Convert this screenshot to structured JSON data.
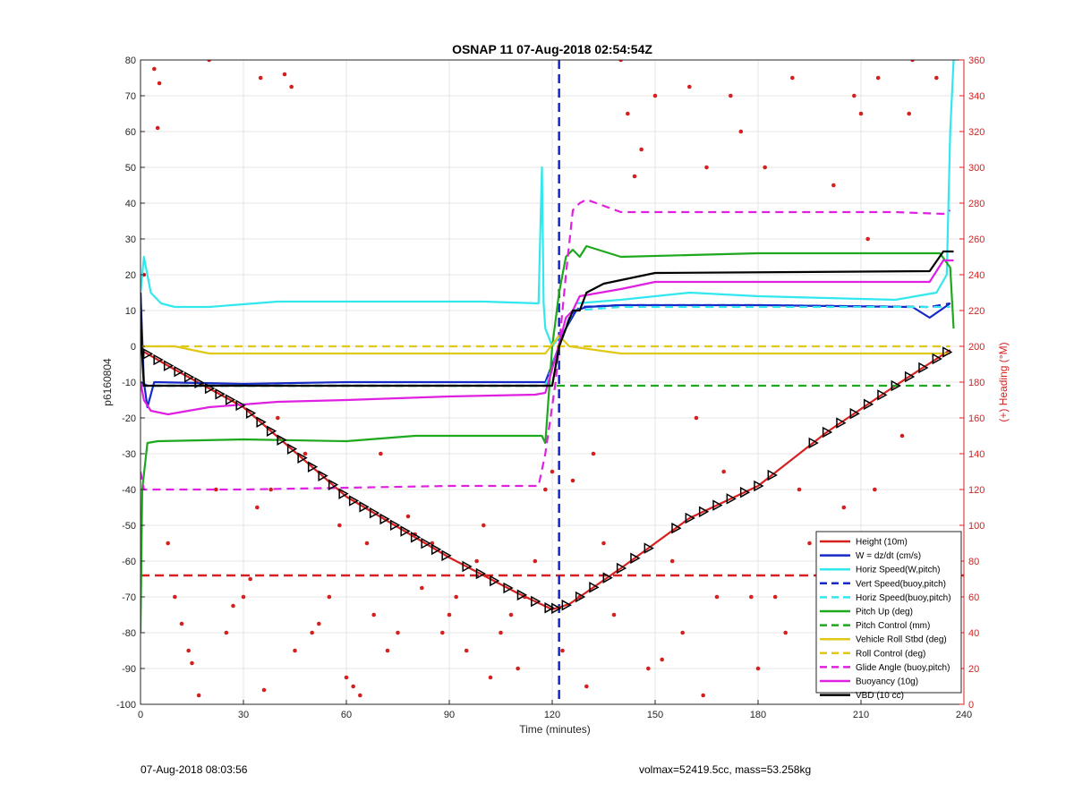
{
  "chart_data": {
    "type": "line",
    "title": "OSNAP 11 07-Aug-2018 02:54:54Z",
    "xlabel": "Time (minutes)",
    "ylabel": "p6160804",
    "y2label": "(+) Heading (°M)",
    "xlim": [
      0,
      240
    ],
    "ylim": [
      -100,
      80
    ],
    "y2lim": [
      0,
      360
    ],
    "xticks": [
      0,
      30,
      60,
      90,
      120,
      150,
      180,
      210,
      240
    ],
    "yticks": [
      -100,
      -90,
      -80,
      -70,
      -60,
      -50,
      -40,
      -30,
      -20,
      -10,
      0,
      10,
      20,
      30,
      40,
      50,
      60,
      70,
      80
    ],
    "y2ticks": [
      0,
      20,
      40,
      60,
      80,
      100,
      120,
      140,
      160,
      180,
      200,
      220,
      240,
      260,
      280,
      300,
      320,
      340,
      360
    ],
    "grid": true,
    "legend_position": "bottom-right",
    "colors": {
      "red": "#d62020",
      "blue": "#1528c8",
      "cyan": "#30e8ee",
      "green": "#1ea81e",
      "yellow": "#e0c818",
      "magenta": "#e020e0",
      "black": "#000000",
      "heading_axis": "#d62020"
    },
    "series": [
      {
        "name": "Height (10m)",
        "color": "#d62020",
        "style": "solid",
        "x": [
          0,
          10,
          30,
          60,
          90,
          100,
          110,
          120,
          125,
          140,
          160,
          180,
          200,
          220,
          236
        ],
        "y": [
          -1,
          -6.5,
          -17,
          -42,
          -59,
          -64,
          -69,
          -73.5,
          -72,
          -62,
          -48,
          -39,
          -24,
          -11,
          -1
        ]
      },
      {
        "name": "W = dz/dt (cm/s)",
        "color": "#1528c8",
        "style": "solid",
        "x": [
          0,
          1,
          2,
          4,
          30,
          60,
          90,
          118,
          120,
          124,
          127,
          130,
          140,
          180,
          225,
          230,
          233,
          236
        ],
        "y": [
          15,
          -10,
          -17,
          -10,
          -10.5,
          -10,
          -10,
          -10,
          -5,
          5,
          10,
          11,
          11.5,
          11.5,
          11,
          8,
          10,
          12
        ]
      },
      {
        "name": "Horiz Speed(W,pitch)",
        "color": "#30e8ee",
        "style": "solid",
        "x": [
          0,
          1,
          3,
          6,
          10,
          20,
          40,
          60,
          80,
          100,
          116,
          117,
          117.5,
          118,
          120,
          124,
          127,
          140,
          160,
          180,
          200,
          220,
          232,
          235,
          236,
          237
        ],
        "y": [
          15,
          25,
          15,
          12,
          11,
          11,
          12.5,
          12.5,
          12.5,
          12.5,
          12,
          50,
          12,
          5,
          0,
          5,
          12,
          13,
          15,
          14,
          13.5,
          13,
          15,
          20,
          60,
          80
        ]
      },
      {
        "name": "Vert Speed(buoy,pitch)",
        "color": "#1528c8",
        "style": "dashed",
        "x": [
          0,
          2,
          10,
          60,
          118,
          121,
          125,
          128,
          140,
          180,
          230,
          236
        ],
        "y": [
          -10,
          -11,
          -11,
          -11,
          -11,
          -3,
          8,
          11,
          11.5,
          11.5,
          11,
          12
        ]
      },
      {
        "name": "Horiz Speed(buoy,pitch)",
        "color": "#30e8ee",
        "style": "dashed",
        "x": [
          0,
          2,
          60,
          118,
          122,
          126,
          140,
          236
        ],
        "y": [
          -11,
          -11,
          -11,
          -11,
          0,
          10,
          11,
          11
        ]
      },
      {
        "name": "Pitch Up (deg)",
        "color": "#1ea81e",
        "style": "solid",
        "x": [
          0,
          0.5,
          2,
          5,
          30,
          60,
          80,
          100,
          117,
          118,
          120,
          122,
          124,
          126,
          128,
          130,
          140,
          160,
          180,
          200,
          220,
          233,
          236,
          237
        ],
        "y": [
          -80,
          -40,
          -27,
          -26.5,
          -26,
          -26.5,
          -25,
          -25,
          -25,
          -27,
          0,
          15,
          25,
          27,
          25,
          28,
          25,
          25.5,
          26,
          26,
          26,
          26,
          22,
          5
        ]
      },
      {
        "name": "Pitch Control (mm)",
        "color": "#1ea81e",
        "style": "dashed",
        "x": [
          0,
          236
        ],
        "y": [
          -11,
          -11
        ]
      },
      {
        "name": "Vehicle Roll Stbd (deg)",
        "color": "#e0c818",
        "style": "solid",
        "x": [
          0,
          10,
          20,
          40,
          60,
          80,
          100,
          118,
          122,
          125,
          140,
          160,
          180,
          200,
          220,
          236
        ],
        "y": [
          0,
          0,
          -2,
          -2,
          -2,
          -2,
          -2,
          -2,
          3,
          0,
          -2,
          -2,
          -2,
          -2,
          -2,
          -2
        ]
      },
      {
        "name": "Roll Control (deg)",
        "color": "#e0c818",
        "style": "dashed",
        "x": [
          0,
          236
        ],
        "y": [
          0,
          0
        ]
      },
      {
        "name": "Glide Angle (buoy,pitch)",
        "color": "#e020e0",
        "style": "dashed",
        "x": [
          0,
          1,
          3,
          30,
          60,
          90,
          116,
          118,
          121,
          124,
          126,
          128,
          130,
          140,
          180,
          220,
          234,
          236
        ],
        "y": [
          -35,
          -40,
          -40,
          -40,
          -39.5,
          -39,
          -39,
          -30,
          -10,
          20,
          38,
          40,
          41,
          37.5,
          37.5,
          37.5,
          37,
          38
        ]
      },
      {
        "name": "Buoyancy (10g)",
        "color": "#e020e0",
        "style": "solid",
        "x": [
          0,
          1,
          3,
          8,
          20,
          40,
          60,
          90,
          115,
          118,
          121,
          124,
          126,
          128,
          140,
          150,
          230,
          234,
          237
        ],
        "y": [
          -10,
          -15,
          -18,
          -19,
          -17,
          -15.5,
          -15,
          -14,
          -13.5,
          -13,
          -3,
          8,
          10,
          14,
          16,
          18,
          18,
          24,
          24
        ]
      },
      {
        "name": "VBD (10 cc)",
        "color": "#000000",
        "style": "solid",
        "x": [
          0,
          0.3,
          1,
          5,
          60,
          118,
          120,
          122,
          124,
          126,
          128,
          130,
          135,
          150,
          230,
          234,
          237
        ],
        "y": [
          15,
          0,
          -11,
          -11,
          -11,
          -11,
          -11,
          0,
          5,
          10,
          10,
          15,
          17.5,
          20.5,
          21,
          26.5,
          26.5
        ]
      }
    ],
    "reference_lines": [
      {
        "orientation": "horizontal",
        "y": -64,
        "color": "#d62020",
        "style": "dashed"
      },
      {
        "orientation": "vertical",
        "x": 122,
        "color": "#1528c8",
        "style": "dashed"
      }
    ],
    "heading_points": {
      "axis": "right",
      "color": "#d62020",
      "x": [
        1,
        4,
        5,
        5.5,
        8,
        10,
        12,
        14,
        15,
        17,
        20,
        22,
        25,
        27,
        30,
        32,
        34,
        35,
        36,
        38,
        40,
        42,
        44,
        45,
        48,
        50,
        52,
        55,
        58,
        60,
        62,
        64,
        66,
        68,
        70,
        72,
        75,
        78,
        80,
        82,
        85,
        88,
        90,
        92,
        95,
        98,
        100,
        102,
        105,
        108,
        110,
        112,
        115,
        118,
        120,
        123,
        126,
        128,
        130,
        132,
        135,
        138,
        140,
        142,
        144,
        146,
        148,
        150,
        152,
        155,
        158,
        160,
        162,
        164,
        165,
        168,
        170,
        172,
        175,
        178,
        180,
        182,
        185,
        188,
        190,
        192,
        195,
        198,
        200,
        202,
        205,
        208,
        210,
        212,
        214,
        215,
        218,
        220,
        222,
        224,
        225,
        228,
        230,
        232,
        234,
        236,
        238
      ],
      "y": [
        240,
        355,
        322,
        347,
        90,
        60,
        45,
        30,
        23,
        5,
        360,
        120,
        40,
        55,
        60,
        70,
        110,
        350,
        8,
        120,
        160,
        352,
        345,
        30,
        140,
        40,
        45,
        60,
        100,
        15,
        10,
        5,
        90,
        50,
        140,
        30,
        40,
        105,
        95,
        65,
        90,
        40,
        50,
        60,
        30,
        80,
        100,
        15,
        40,
        50,
        20,
        60,
        80,
        120,
        130,
        30,
        125,
        60,
        10,
        140,
        90,
        50,
        360,
        330,
        295,
        310,
        20,
        340,
        25,
        80,
        40,
        345,
        160,
        5,
        300,
        60,
        130,
        340,
        320,
        60,
        20,
        300,
        60,
        40,
        350,
        120,
        90,
        60,
        30,
        290,
        110,
        340,
        330,
        260,
        120,
        350,
        40,
        90,
        150,
        330,
        360,
        70,
        90,
        350,
        10,
        30,
        40
      ]
    },
    "chevron_markers": {
      "on_series": "Height (10m)",
      "x": [
        2,
        5,
        8,
        11,
        14,
        17,
        20,
        23,
        26,
        29,
        32,
        35,
        38,
        41,
        44,
        47,
        50,
        53,
        56,
        59,
        62,
        65,
        68,
        71,
        74,
        77,
        80,
        83,
        86,
        89,
        95,
        99,
        103,
        107,
        111,
        115,
        119,
        121,
        124,
        128,
        132,
        136,
        140,
        144,
        148,
        156,
        160,
        164,
        168,
        172,
        176,
        180,
        184,
        196,
        200,
        204,
        208,
        212,
        216,
        220,
        224,
        228,
        232,
        235
      ]
    },
    "legend": [
      "Height (10m)",
      "W = dz/dt (cm/s)",
      "Horiz Speed(W,pitch)",
      "Vert Speed(buoy,pitch)",
      "Horiz Speed(buoy,pitch)",
      "Pitch Up (deg)",
      "Pitch Control (mm)",
      "Vehicle Roll Stbd (deg)",
      "Roll Control (deg)",
      "Glide Angle (buoy,pitch)",
      "Buoyancy (10g)",
      "VBD (10 cc)"
    ]
  },
  "footer": {
    "left": "07-Aug-2018 08:03:56",
    "right": "volmax=52419.5cc, mass=53.258kg"
  }
}
